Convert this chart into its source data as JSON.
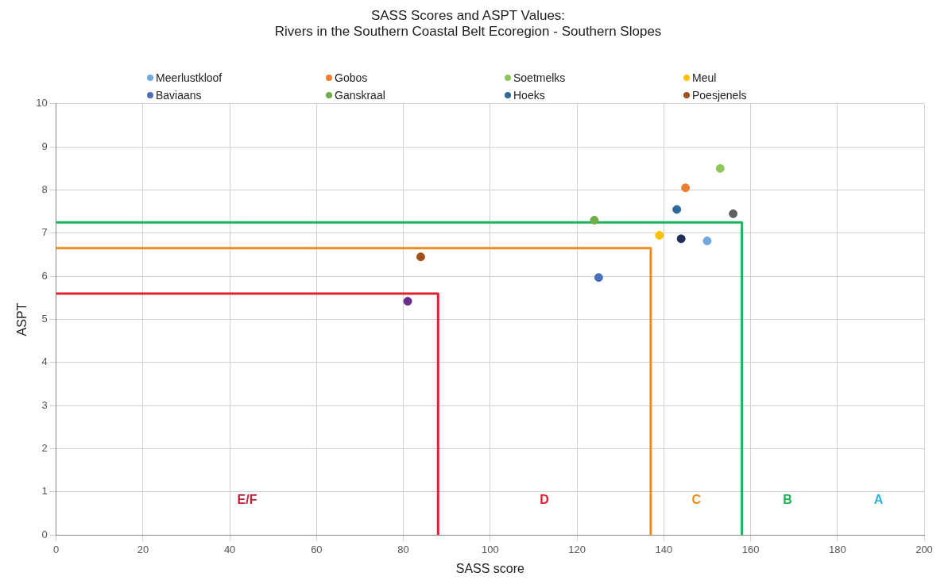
{
  "chart_data": {
    "type": "scatter",
    "title": "SASS Scores and ASPT Values:\nRivers in the Southern Coastal Belt Ecoregion - Southern Slopes",
    "xlabel": "SASS score",
    "ylabel": "ASPT",
    "xlim": [
      0,
      200
    ],
    "xticks": [
      0,
      20,
      40,
      60,
      80,
      100,
      120,
      140,
      160,
      180,
      200
    ],
    "ylim": [
      0,
      10
    ],
    "yticks": [
      0,
      1,
      2,
      3,
      4,
      5,
      6,
      7,
      8,
      9,
      10
    ],
    "grid": true,
    "legend": "top",
    "marker": "circle",
    "series": [
      {
        "name": "Meerlustkloof",
        "color": "#6fa8dc",
        "x": [
          150
        ],
        "values": [
          6.82
        ]
      },
      {
        "name": "Gobos",
        "color": "#ed7d31",
        "x": [
          145
        ],
        "values": [
          8.05
        ]
      },
      {
        "name": "Soetmelks",
        "color": "#8fc65a",
        "x": [
          153
        ],
        "values": [
          8.5
        ]
      },
      {
        "name": "Meul",
        "color": "#ffc000",
        "x": [
          139
        ],
        "values": [
          6.95
        ]
      },
      {
        "name": "Baviaans",
        "color": "#4a6fba",
        "x": [
          125
        ],
        "values": [
          5.97
        ]
      },
      {
        "name": "Ganskraal",
        "color": "#70ad47",
        "x": [
          124
        ],
        "values": [
          7.3
        ]
      },
      {
        "name": "Hoeks",
        "color": "#2e6a9a",
        "x": [
          143
        ],
        "values": [
          7.55
        ]
      },
      {
        "name": "Poesjenels",
        "color": "#a0501a",
        "x": [
          84
        ],
        "values": [
          6.45
        ]
      },
      {
        "color": "#6a2c8a",
        "x": [
          81
        ],
        "values": [
          5.42
        ]
      },
      {
        "color": "#1f2f5a",
        "x": [
          144
        ],
        "values": [
          6.87
        ]
      },
      {
        "color": "#606060",
        "x": [
          156
        ],
        "values": [
          7.45
        ]
      },
      {
        "type": "line",
        "color": "#e0202e",
        "marker": "none",
        "x": [
          0,
          88,
          88
        ],
        "values": [
          5.6,
          5.6,
          0
        ]
      },
      {
        "type": "line",
        "color": "#f28a1c",
        "marker": "none",
        "x": [
          0,
          137,
          137
        ],
        "values": [
          6.65,
          6.65,
          0
        ]
      },
      {
        "type": "line",
        "color": "#1fb35a",
        "marker": "none",
        "x": [
          0,
          158,
          158
        ],
        "values": [
          7.25,
          7.25,
          0
        ]
      }
    ],
    "annotations": [
      "E/F",
      "D",
      "C",
      "B",
      "A"
    ]
  }
}
